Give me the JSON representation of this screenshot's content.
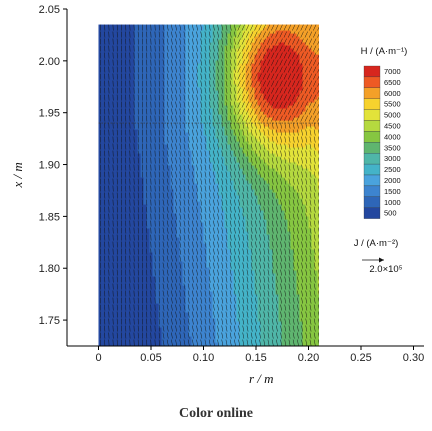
{
  "chart_data": {
    "type": "heatmap",
    "title": "",
    "xlabel": "r / m",
    "ylabel": "x / m",
    "xlim": [
      -0.03,
      0.31
    ],
    "ylim": [
      1.725,
      2.05
    ],
    "x_ticks": [
      "0",
      "0.05",
      "0.10",
      "0.15",
      "0.20",
      "0.25",
      "0.30"
    ],
    "x_tick_values": [
      0,
      0.05,
      0.1,
      0.15,
      0.2,
      0.25,
      0.3
    ],
    "y_ticks": [
      "1.75",
      "1.80",
      "1.85",
      "1.90",
      "1.95",
      "2.00",
      "2.05"
    ],
    "y_tick_values": [
      1.75,
      1.8,
      1.85,
      1.9,
      1.95,
      2.0,
      2.05
    ],
    "domain": {
      "r": [
        0,
        0.21
      ],
      "x": [
        1.725,
        2.035
      ]
    },
    "interface_x": 1.94,
    "colorbar": {
      "title": "H / (A·m⁻¹)",
      "levels": [
        7000,
        6500,
        6000,
        5500,
        5000,
        4500,
        4000,
        3500,
        3000,
        2500,
        2000,
        1500,
        1000,
        500
      ],
      "labels": [
        "7000",
        "6500",
        "6000",
        "5500",
        "5000",
        "4500",
        "4000",
        "3500",
        "3000",
        "2500",
        "2000",
        "1500",
        "1000",
        "500"
      ],
      "colors": [
        "#d7261e",
        "#ee5a24",
        "#f4a028",
        "#f7d22e",
        "#e2e33a",
        "#b5d93f",
        "#86c641",
        "#5fb56f",
        "#4fb6a8",
        "#44b3c8",
        "#4aa3dd",
        "#3d84cf",
        "#2e66b8",
        "#23479f"
      ]
    },
    "vector_legend": {
      "title": "J / (A·m⁻²)",
      "label": "2.0×10⁵"
    },
    "field_ramp": [
      500,
      500,
      1000,
      1500,
      2000,
      2500,
      3000,
      3500,
      4000,
      4500,
      5000
    ],
    "field_ramp_r": [
      0,
      0.02,
      0.05,
      0.075,
      0.1,
      0.12,
      0.14,
      0.16,
      0.18,
      0.2,
      0.21
    ],
    "hotspot": {
      "r": 0.165,
      "x": 1.985,
      "value": 7200
    },
    "note_text": "Color online"
  }
}
